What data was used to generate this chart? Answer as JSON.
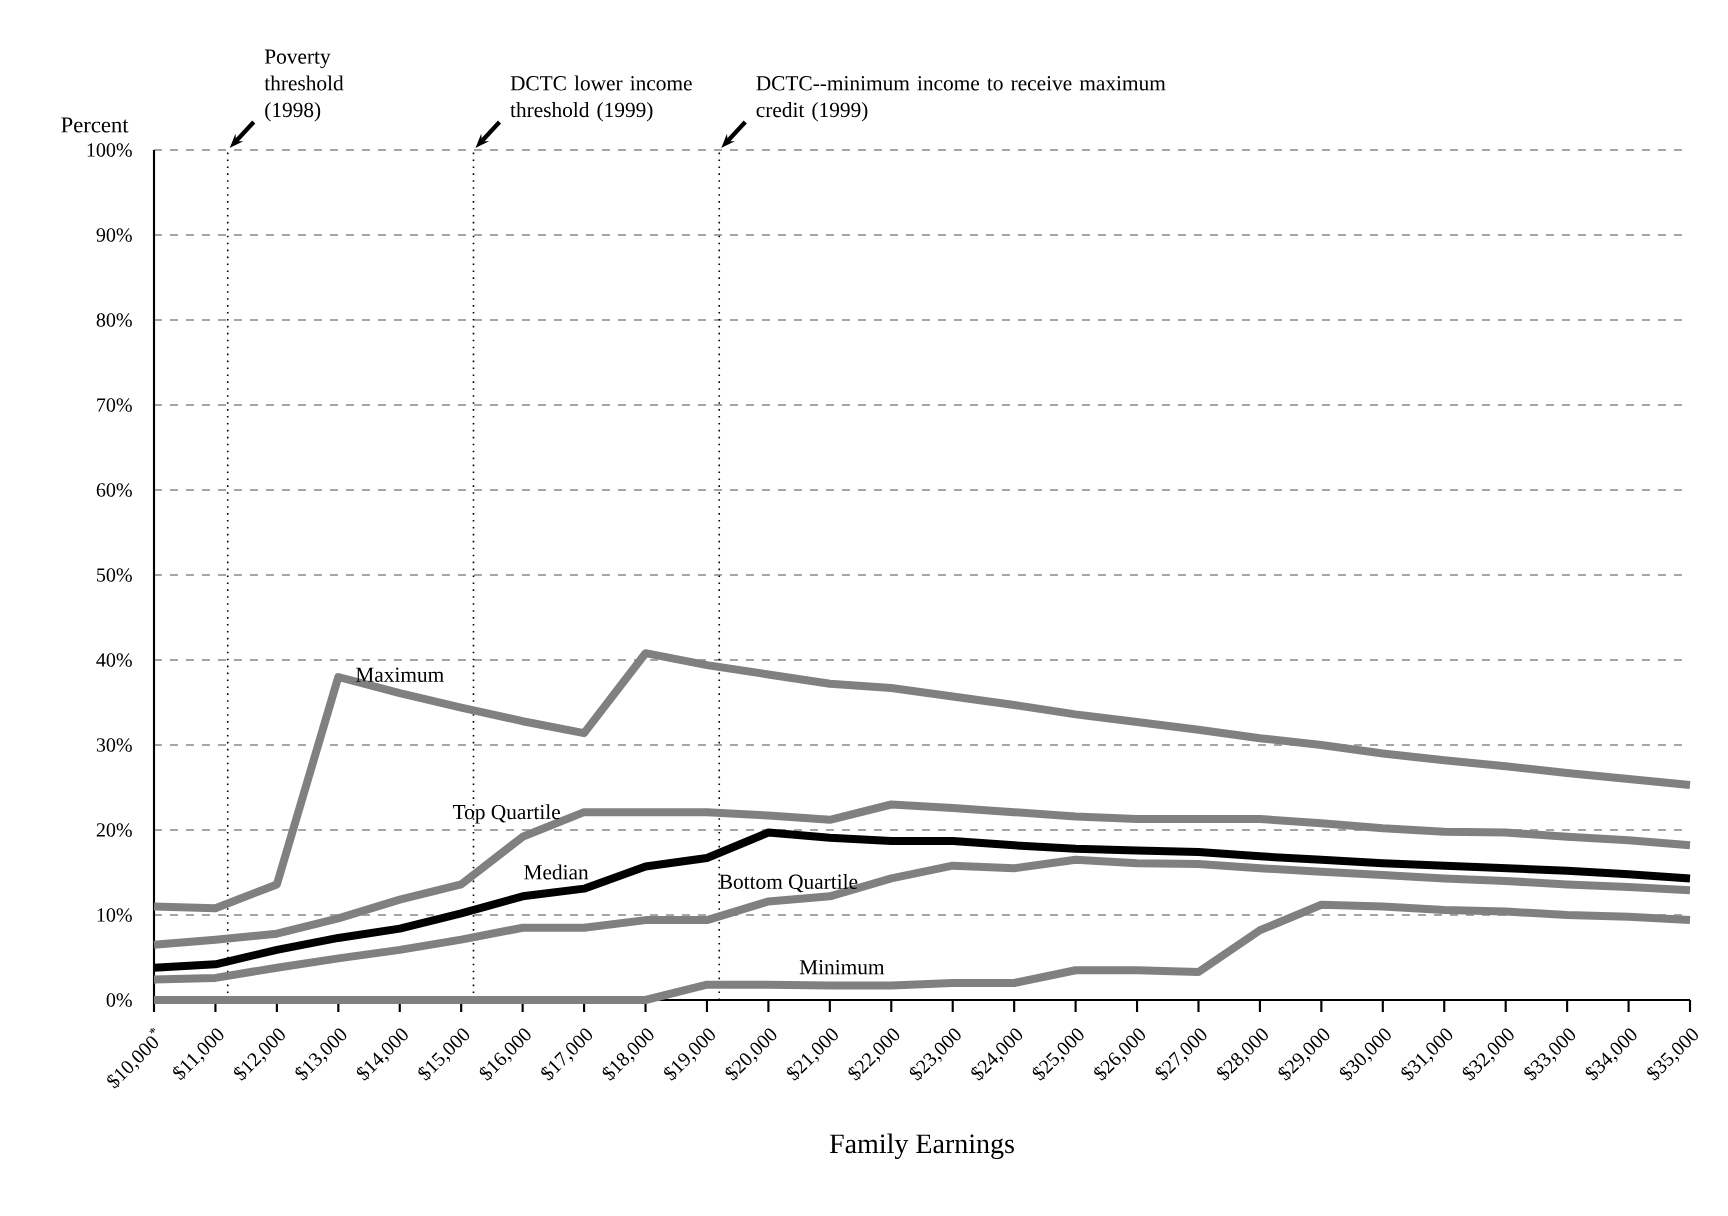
{
  "chart_data": {
    "type": "line",
    "xlabel": "Family Earnings",
    "ylabel": "Percent",
    "x": [
      10000,
      11000,
      12000,
      13000,
      14000,
      15000,
      16000,
      17000,
      18000,
      19000,
      20000,
      21000,
      22000,
      23000,
      24000,
      25000,
      26000,
      27000,
      28000,
      29000,
      30000,
      31000,
      32000,
      33000,
      34000,
      35000
    ],
    "xlim": [
      10000,
      35000
    ],
    "xticks": [
      {
        "value": 10000,
        "label": "$10,000$^{*}$"
      },
      {
        "value": 11000,
        "label": "$11,000"
      },
      {
        "value": 12000,
        "label": "$12,000"
      },
      {
        "value": 13000,
        "label": "$13,000"
      },
      {
        "value": 14000,
        "label": "$14,000"
      },
      {
        "value": 15000,
        "label": "$15,000"
      },
      {
        "value": 16000,
        "label": "$16,000"
      },
      {
        "value": 17000,
        "label": "$17,000"
      },
      {
        "value": 18000,
        "label": "$18,000"
      },
      {
        "value": 19000,
        "label": "$19,000"
      },
      {
        "value": 20000,
        "label": "$20,000"
      },
      {
        "value": 21000,
        "label": "$21,000"
      },
      {
        "value": 22000,
        "label": "$22,000"
      },
      {
        "value": 23000,
        "label": "$23,000"
      },
      {
        "value": 24000,
        "label": "$24,000"
      },
      {
        "value": 25000,
        "label": "$25,000"
      },
      {
        "value": 26000,
        "label": "$26,000"
      },
      {
        "value": 27000,
        "label": "$27,000"
      },
      {
        "value": 28000,
        "label": "$28,000"
      },
      {
        "value": 29000,
        "label": "$29,000"
      },
      {
        "value": 30000,
        "label": "$30,000"
      },
      {
        "value": 31000,
        "label": "$31,000"
      },
      {
        "value": 32000,
        "label": "$32,000"
      },
      {
        "value": 33000,
        "label": "$33,000"
      },
      {
        "value": 34000,
        "label": "$34,000"
      },
      {
        "value": 35000,
        "label": "$35,000"
      }
    ],
    "ylim": [
      0,
      100
    ],
    "yticks": [
      {
        "value": 0,
        "label": "0%"
      },
      {
        "value": 10,
        "label": "10%"
      },
      {
        "value": 20,
        "label": "20%"
      },
      {
        "value": 30,
        "label": "30%"
      },
      {
        "value": 40,
        "label": "40%"
      },
      {
        "value": 50,
        "label": "50%"
      },
      {
        "value": 60,
        "label": "60%"
      },
      {
        "value": 70,
        "label": "70%"
      },
      {
        "value": 80,
        "label": "80%"
      },
      {
        "value": 90,
        "label": "90%"
      },
      {
        "value": 100,
        "label": "100%"
      }
    ],
    "grid": "y",
    "legend": false,
    "marker": "none",
    "line_style": "solid",
    "series": [
      {
        "name": "Maximum",
        "color": "#808080",
        "values": [
          11.0,
          10.8,
          13.6,
          38.0,
          36.1,
          34.4,
          32.8,
          31.4,
          40.8,
          39.4,
          38.3,
          37.2,
          36.7,
          35.7,
          34.7,
          33.6,
          32.7,
          31.8,
          30.8,
          30.0,
          29.0,
          28.2,
          27.5,
          26.7,
          26.0,
          25.3
        ]
      },
      {
        "name": "Top Quartile",
        "color": "#808080",
        "values": [
          6.5,
          7.1,
          7.8,
          9.6,
          11.8,
          13.6,
          19.2,
          22.1,
          22.1,
          22.1,
          21.7,
          21.2,
          23.0,
          22.6,
          22.1,
          21.6,
          21.3,
          21.3,
          21.3,
          20.8,
          20.2,
          19.8,
          19.7,
          19.2,
          18.8,
          18.2
        ]
      },
      {
        "name": "Median",
        "color": "#000000",
        "values": [
          3.8,
          4.2,
          5.9,
          7.3,
          8.4,
          10.2,
          12.2,
          13.1,
          15.7,
          16.7,
          19.7,
          19.1,
          18.7,
          18.7,
          18.2,
          17.8,
          17.6,
          17.4,
          16.9,
          16.5,
          16.1,
          15.8,
          15.5,
          15.2,
          14.8,
          14.3
        ]
      },
      {
        "name": "Bottom Quartile",
        "color": "#808080",
        "values": [
          2.4,
          2.6,
          3.8,
          4.9,
          5.9,
          7.1,
          8.5,
          8.5,
          9.4,
          9.4,
          11.6,
          12.2,
          14.3,
          15.8,
          15.5,
          16.5,
          16.1,
          16.0,
          15.5,
          15.1,
          14.7,
          14.3,
          14.0,
          13.6,
          13.3,
          12.9
        ]
      },
      {
        "name": "Minimum",
        "color": "#808080",
        "values": [
          0,
          0,
          0,
          0,
          0,
          0,
          0,
          0,
          0,
          1.8,
          1.8,
          1.7,
          1.7,
          2.0,
          2.0,
          3.5,
          3.5,
          3.3,
          8.2,
          11.2,
          11.0,
          10.6,
          10.4,
          10.0,
          9.8,
          9.4
        ]
      }
    ],
    "ref_lines": [
      {
        "axis": "x",
        "value": 11200,
        "label": "Poverty threshold (1998)",
        "line_style": "dotted",
        "color": "#000000"
      },
      {
        "axis": "x",
        "value": 15200,
        "label": "DCTC lower income threshold (1999)",
        "line_style": "dotted",
        "color": "#000000"
      },
      {
        "axis": "x",
        "value": 19200,
        "label": "DCTC--minimum income to receive maximum credit (1999)",
        "line_style": "dotted",
        "color": "#000000"
      }
    ]
  }
}
